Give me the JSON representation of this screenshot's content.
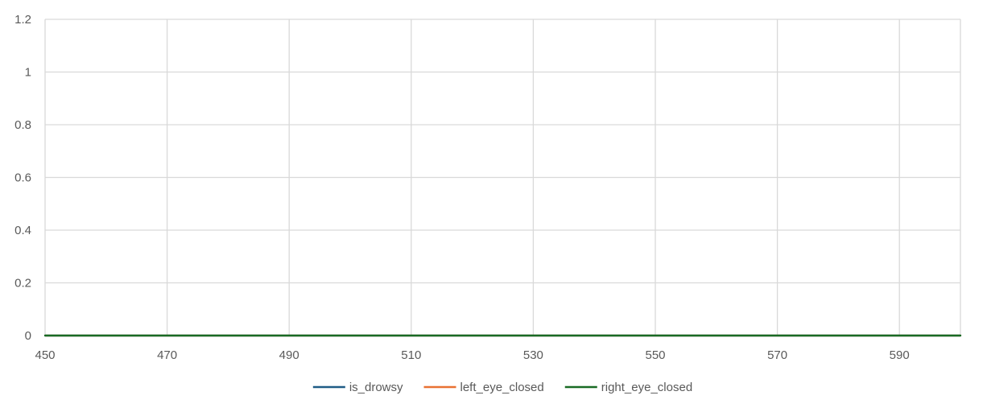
{
  "chart_data": {
    "type": "line",
    "title": "",
    "xlabel": "",
    "ylabel": "",
    "xlim": [
      450,
      600
    ],
    "ylim": [
      0,
      1.2
    ],
    "x_ticks": [
      450,
      470,
      490,
      510,
      530,
      550,
      570,
      590
    ],
    "x_tick_labels": [
      "450",
      "470",
      "490",
      "510",
      "530",
      "550",
      "570",
      "590"
    ],
    "y_ticks": [
      0,
      0.2,
      0.4,
      0.6,
      0.8,
      1.0,
      1.2
    ],
    "y_tick_labels": [
      "0",
      "0.2",
      "0.4",
      "0.6",
      "0.8",
      "1",
      "1.2"
    ],
    "grid": true,
    "legend": "bottom-center",
    "series": [
      {
        "name": "is_drowsy",
        "color": "#1f5c86",
        "x": [
          450,
          600
        ],
        "y": [
          0,
          0
        ]
      },
      {
        "name": "left_eye_closed",
        "color": "#e97132",
        "x": [
          450,
          600
        ],
        "y": [
          0,
          0
        ]
      },
      {
        "name": "right_eye_closed",
        "color": "#196b24",
        "x": [
          450,
          600
        ],
        "y": [
          0,
          0
        ]
      }
    ],
    "colors": {
      "grid": "#d9d9d9",
      "axis": "#bfbfbf",
      "tick_text": "#595959"
    }
  }
}
